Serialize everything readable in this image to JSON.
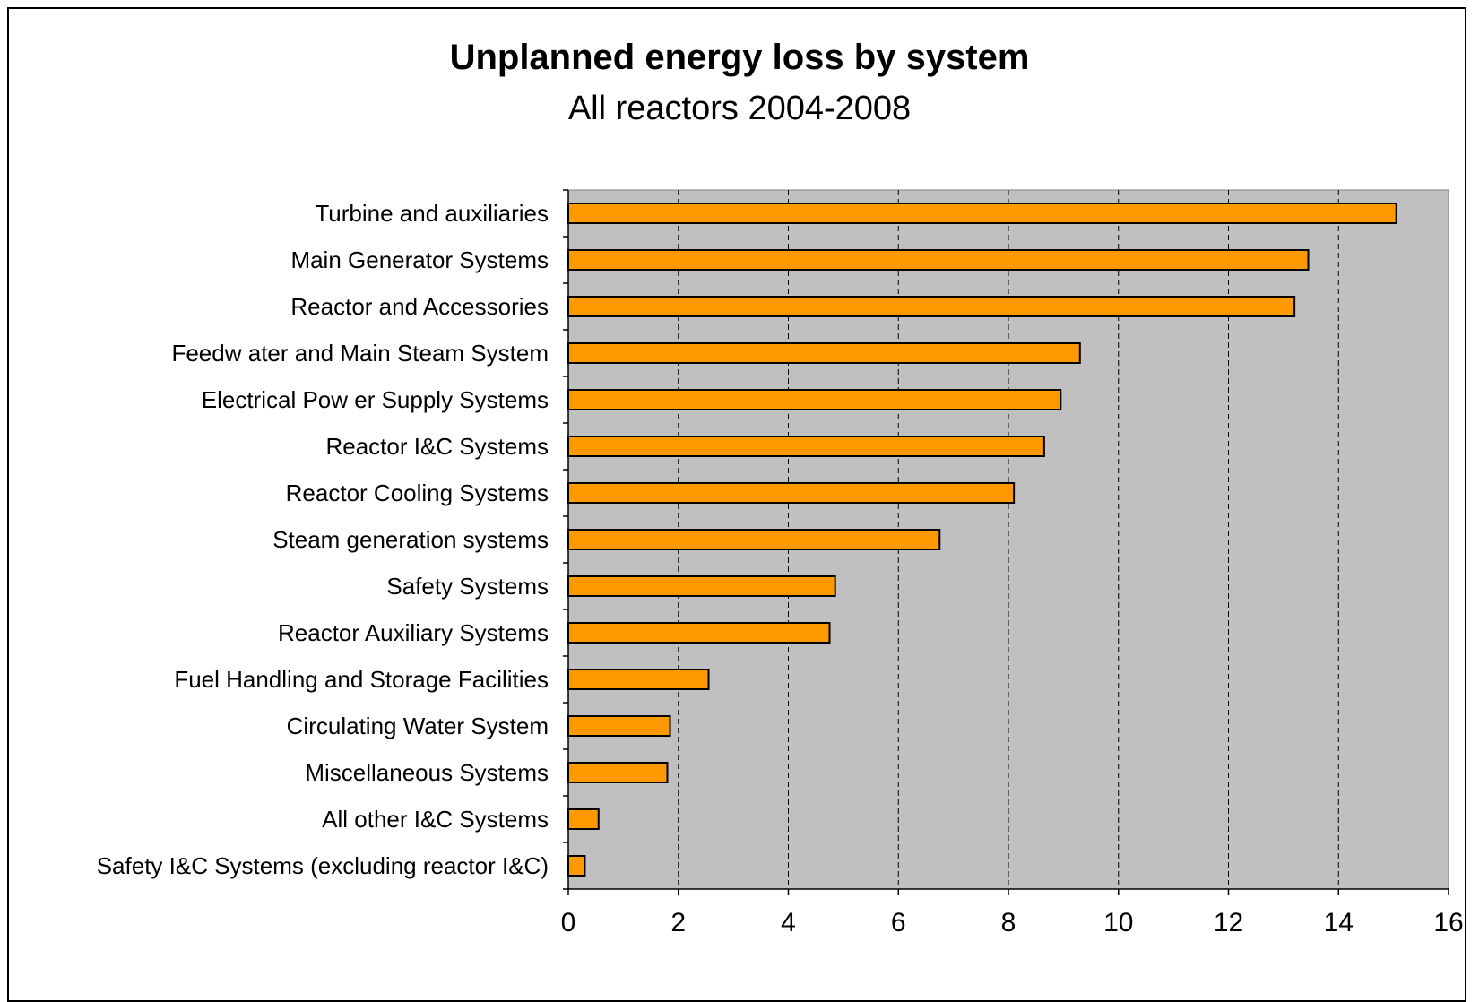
{
  "chart_data": {
    "type": "bar",
    "orientation": "horizontal",
    "title": "Unplanned energy loss by system",
    "subtitle": "All reactors 2004-2008",
    "xlabel": "",
    "ylabel": "",
    "xlim": [
      0,
      16
    ],
    "x_ticks": [
      0,
      2,
      4,
      6,
      8,
      10,
      12,
      14,
      16
    ],
    "grid": "vertical dashed",
    "legend": "none",
    "bar_color": "#FF9900",
    "plot_background": "#C0C0C0",
    "categories": [
      "Turbine and auxiliaries",
      "Main Generator Systems",
      "Reactor and Accessories",
      "Feedw ater and Main Steam System",
      "Electrical Pow er Supply Systems",
      "Reactor I&C Systems",
      "Reactor Cooling Systems",
      "Steam generation systems",
      "Safety Systems",
      "Reactor Auxiliary Systems",
      "Fuel Handling and Storage Facilities",
      "Circulating Water System",
      "Miscellaneous Systems",
      "All other I&C Systems",
      "Safety I&C Systems (excluding reactor I&C)"
    ],
    "values": [
      15.05,
      13.45,
      13.2,
      9.3,
      8.95,
      8.65,
      8.1,
      6.75,
      4.85,
      4.75,
      2.55,
      1.85,
      1.8,
      0.55,
      0.3
    ]
  }
}
